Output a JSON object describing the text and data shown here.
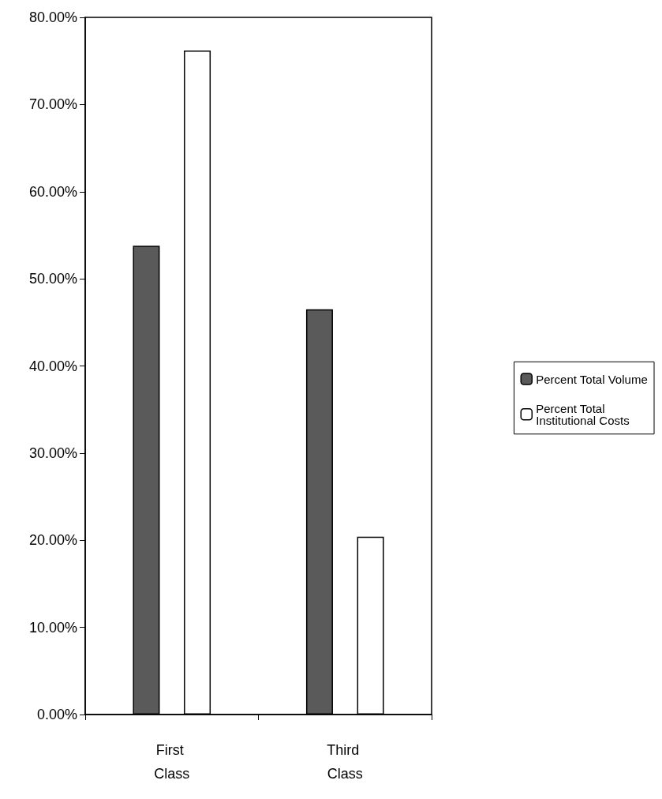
{
  "chart_data": {
    "type": "bar",
    "categories": [
      "First Class",
      "Third Class"
    ],
    "series": [
      {
        "name": "Percent Total Volume",
        "color": "#5a5a5a",
        "values": [
          53.8,
          46.5
        ]
      },
      {
        "name": "Percent Total Institutional Costs",
        "color": "#ffffff",
        "values": [
          76.2,
          20.4
        ]
      }
    ],
    "ylim": [
      0,
      80
    ],
    "yticks": [
      {
        "value": 0,
        "label": "0.00%"
      },
      {
        "value": 10,
        "label": "10.00%"
      },
      {
        "value": 20,
        "label": "20.00%"
      },
      {
        "value": 30,
        "label": "30.00%"
      },
      {
        "value": 40,
        "label": "40.00%"
      },
      {
        "value": 50,
        "label": "50.00%"
      },
      {
        "value": 60,
        "label": "60.00%"
      },
      {
        "value": 70,
        "label": "70.00%"
      },
      {
        "value": 80,
        "label": "80.00%"
      }
    ],
    "grid": false,
    "legend": "right"
  }
}
